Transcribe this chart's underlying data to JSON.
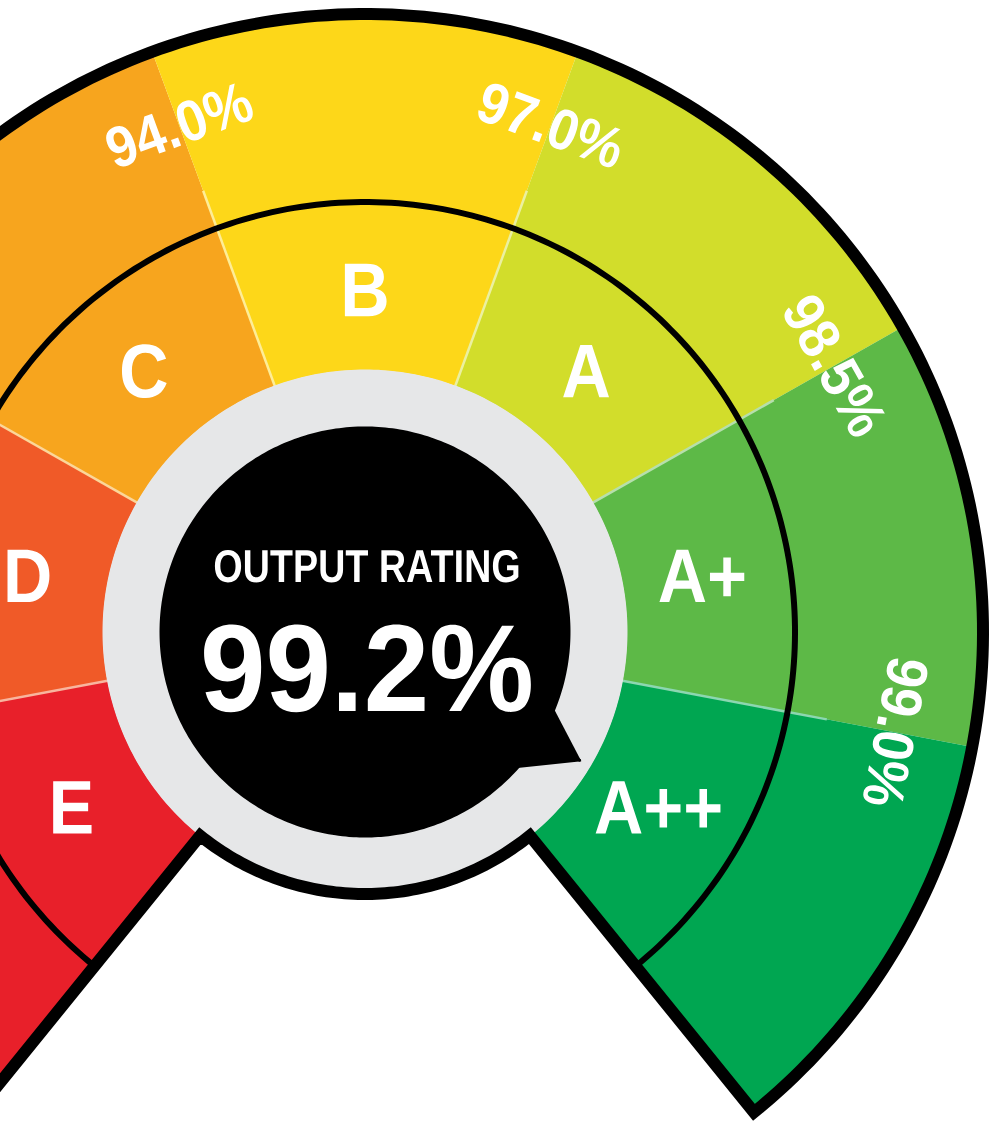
{
  "chart_data": {
    "type": "donut",
    "title": "OUTPUT RATING",
    "subtitle": "99.2%",
    "categories": [
      "E",
      "D",
      "C",
      "B",
      "A",
      "A+",
      "A++"
    ],
    "values": [
      14.29,
      14.29,
      14.29,
      14.29,
      14.29,
      14.29,
      14.29
    ],
    "colors": [
      "#e8202a",
      "#f05a28",
      "#f7a51e",
      "#fdd719",
      "#d2dd2b",
      "#5db947",
      "#00a651"
    ],
    "needle": "A++",
    "annotations": [
      "94.0%",
      "97.0%",
      "98.5%",
      "99.0%"
    ]
  }
}
